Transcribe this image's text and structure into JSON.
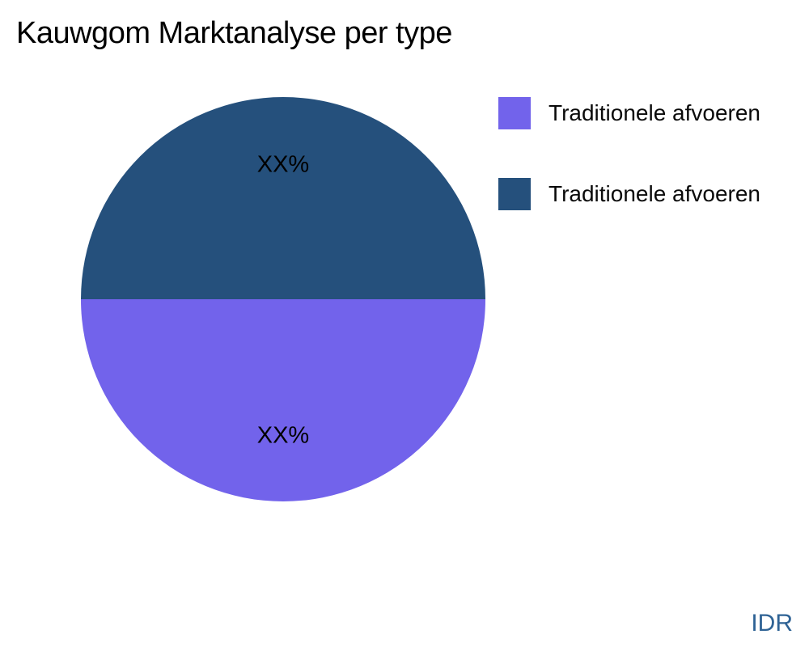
{
  "chart_data": {
    "type": "pie",
    "title": "Kauwgom Marktanalyse per type",
    "slices": [
      {
        "label": "Traditionele afvoeren",
        "value": 50,
        "display_value": "XX%",
        "color": "#7263EB"
      },
      {
        "label": "Traditionele afvoeren",
        "value": 50,
        "display_value": "XX%",
        "color": "#25507C"
      }
    ],
    "start_angle_deg": 0,
    "direction": "clockwise",
    "legend_position": "right",
    "label_position": "inside",
    "label_color": "#000000",
    "footer_label": "IDR",
    "footer_color": "#2f6395",
    "background_color": "#ffffff"
  }
}
